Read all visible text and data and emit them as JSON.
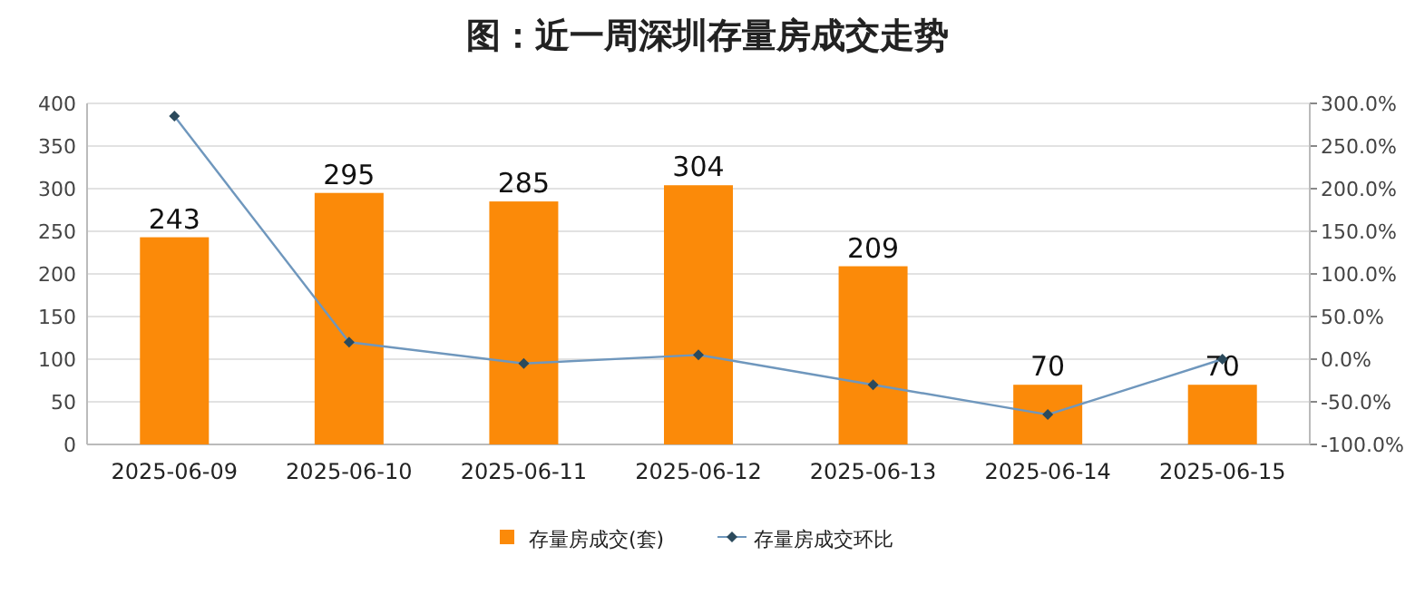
{
  "chart_data": {
    "type": "bar",
    "title": "图：近一周深圳存量房成交走势",
    "categories": [
      "2025-06-09",
      "2025-06-10",
      "2025-06-11",
      "2025-06-12",
      "2025-06-13",
      "2025-06-14",
      "2025-06-15"
    ],
    "series": [
      {
        "name": "存量房成交(套)",
        "color": "#fb8a09",
        "values": [
          243,
          295,
          285,
          304,
          209,
          70,
          70
        ],
        "value_labels": [
          "243",
          "295",
          "285",
          "304",
          "209",
          "70",
          "70"
        ]
      },
      {
        "name": "存量房成交环比",
        "type": "line",
        "axis": "y2",
        "color": "#6f97bd",
        "marker": "diamond",
        "values": [
          285,
          20,
          -5,
          5,
          -30,
          -65,
          0
        ]
      }
    ],
    "ylim": [
      0,
      400
    ],
    "yticks": [
      0,
      50,
      100,
      150,
      200,
      250,
      300,
      350,
      400
    ],
    "y2lim": [
      -100,
      300
    ],
    "y2ticks": [
      {
        "value": -100,
        "label": "-100.0%"
      },
      {
        "value": -50,
        "label": "-50.0%"
      },
      {
        "value": 0,
        "label": "0.0%"
      },
      {
        "value": 50,
        "label": "50.0%"
      },
      {
        "value": 100,
        "label": "100.0%"
      },
      {
        "value": 150,
        "label": "150.0%"
      },
      {
        "value": 200,
        "label": "200.0%"
      },
      {
        "value": 250,
        "label": "250.0%"
      },
      {
        "value": 300,
        "label": "300.0%"
      }
    ],
    "grid": "y",
    "legend": "bottom"
  }
}
